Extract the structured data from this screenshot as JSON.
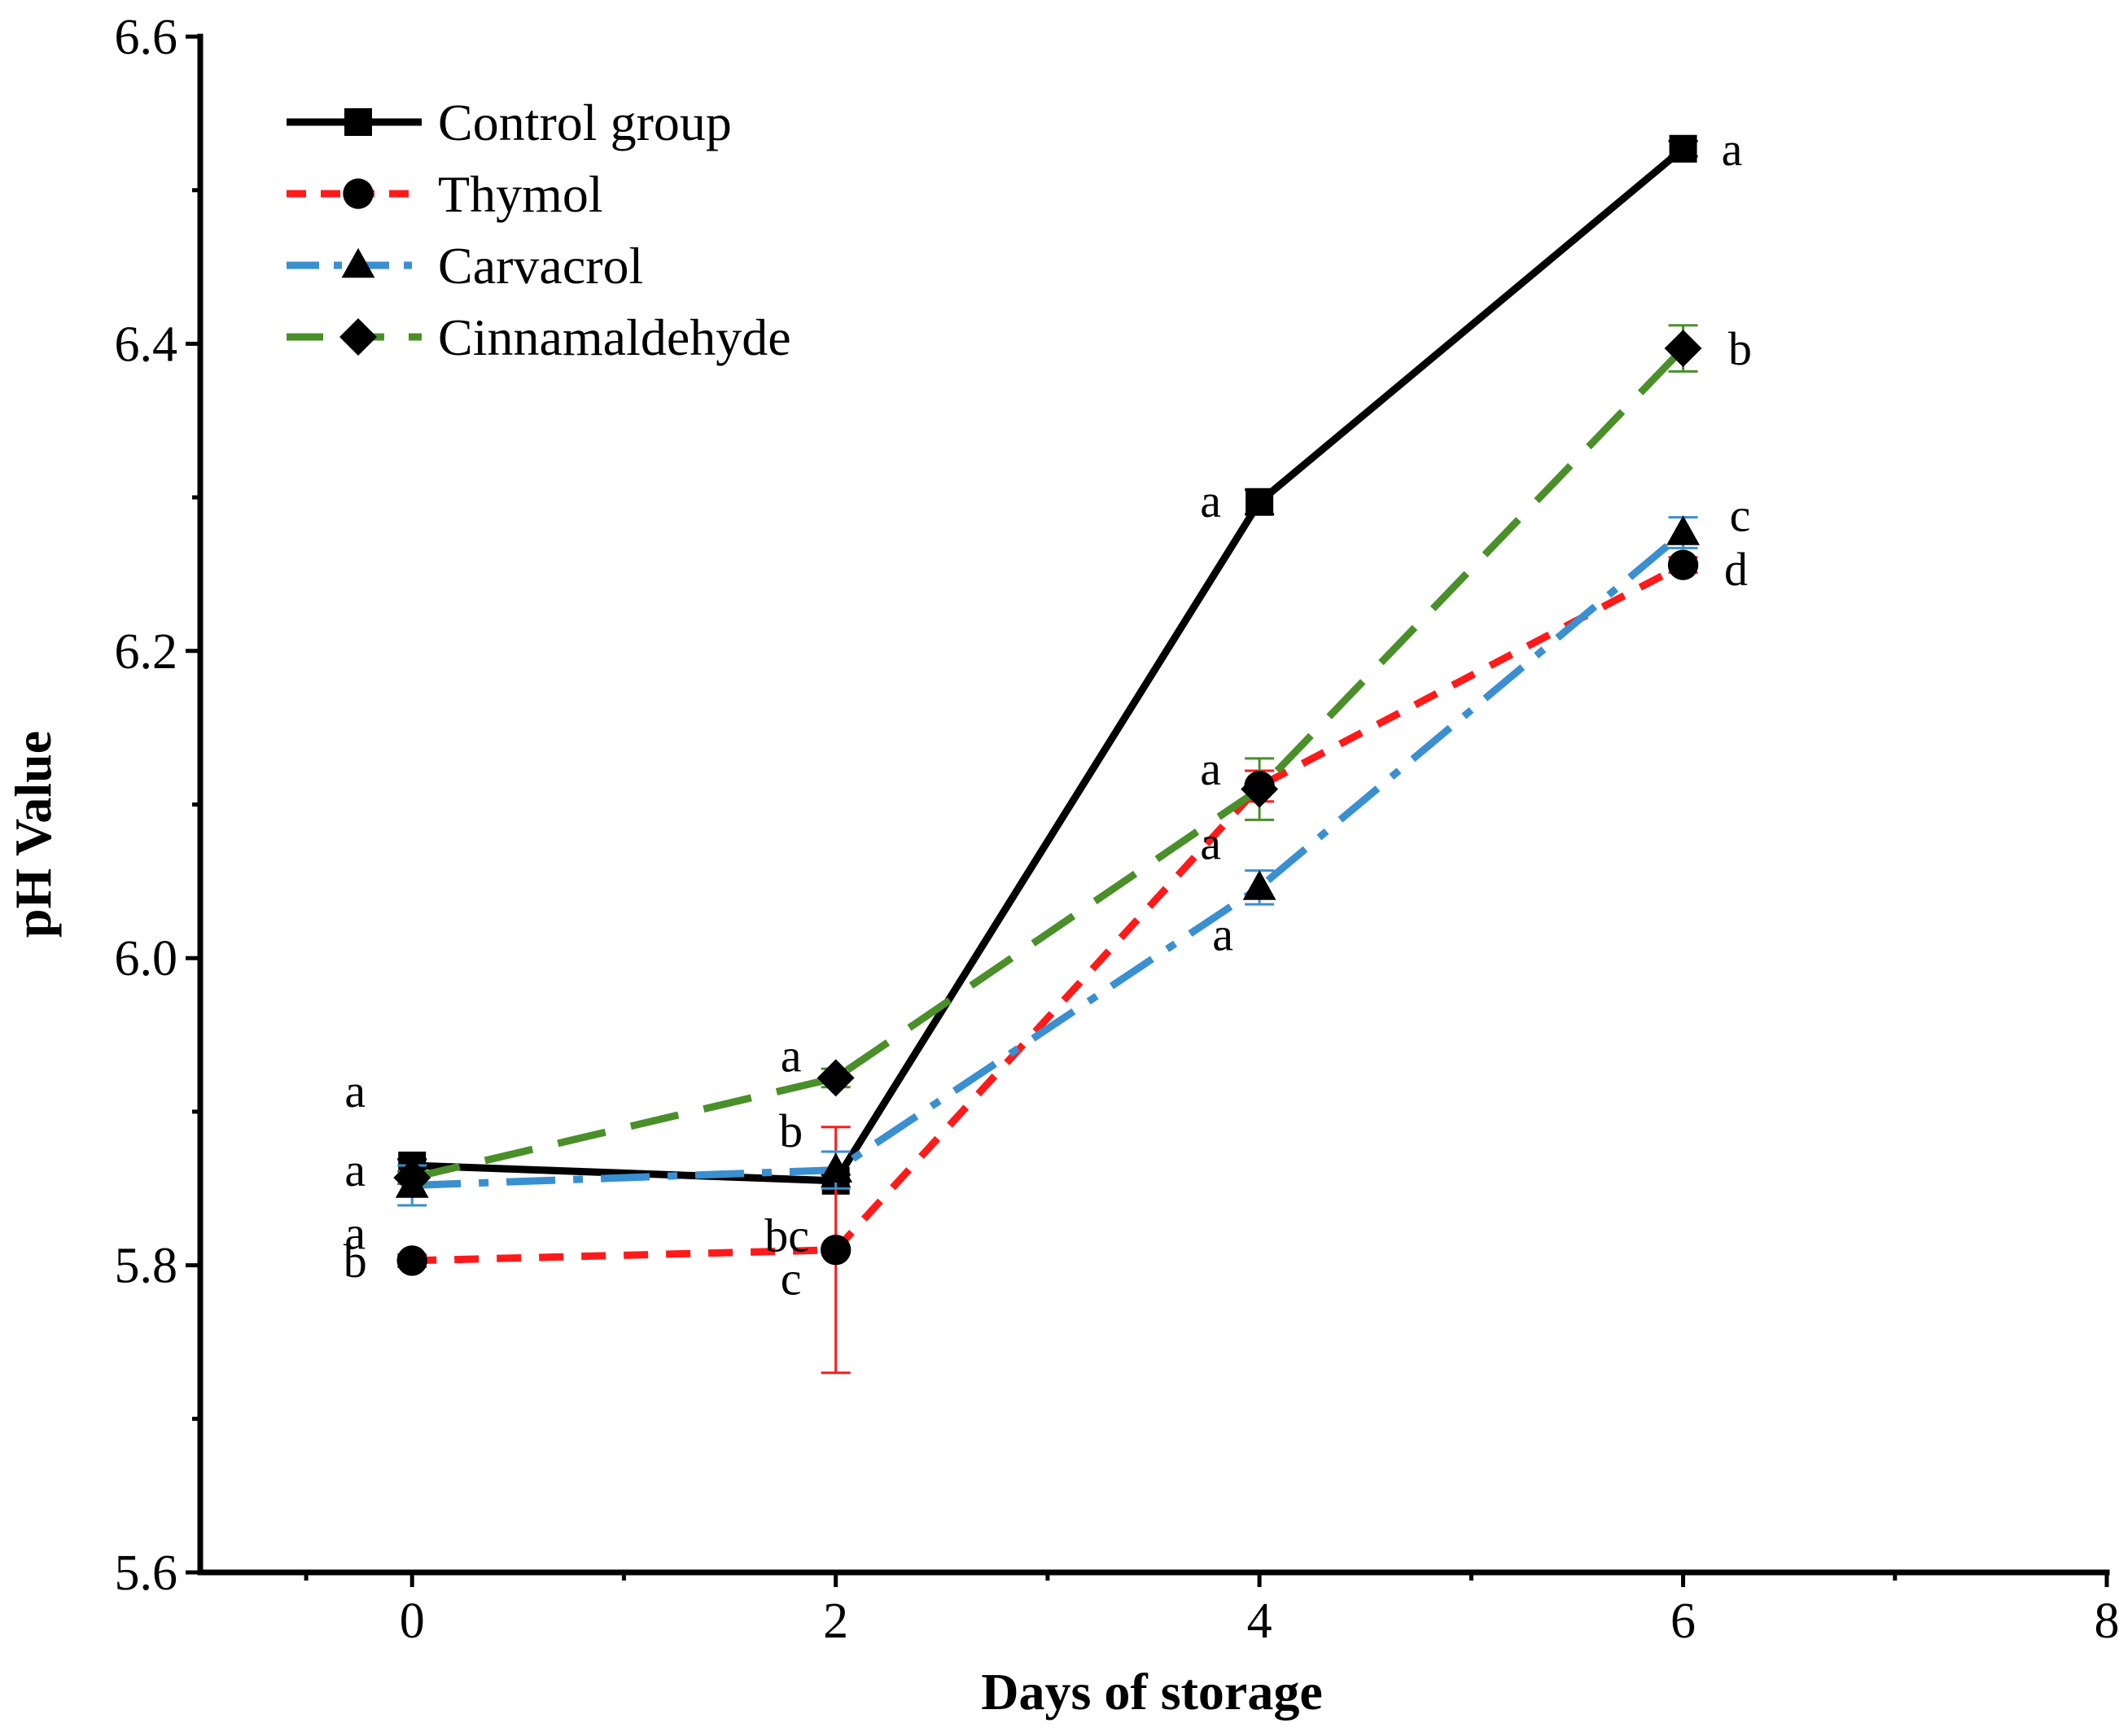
{
  "chart_data": {
    "type": "line",
    "title": "",
    "xlabel": "Days of storage",
    "ylabel": "pH Value",
    "xlim": [
      -1,
      8
    ],
    "ylim": [
      5.6,
      6.6
    ],
    "xticks": [
      0,
      2,
      4,
      6,
      8
    ],
    "xtick_labels": [
      "0",
      "2",
      "4",
      "6",
      "8"
    ],
    "yticks": [
      5.6,
      5.8,
      6.0,
      6.2,
      6.4,
      6.6
    ],
    "ytick_labels": [
      "5.6",
      "5.8",
      "6.0",
      "6.2",
      "6.4",
      "6.6"
    ],
    "grid": false,
    "legend_position": "top-left",
    "series": [
      {
        "name": "Control group",
        "color": "#000000",
        "line_style": "solid",
        "marker": "square",
        "x": [
          0,
          2,
          4,
          6
        ],
        "y": [
          5.865,
          5.855,
          6.297,
          6.527
        ],
        "err": [
          0.004,
          0.004,
          0.008,
          0.005
        ],
        "sig_labels": [
          "a",
          "b",
          "a",
          "a"
        ]
      },
      {
        "name": "Thymol",
        "color": "#ff1a1a",
        "line_style": "dashed",
        "marker": "circle",
        "x": [
          0,
          2,
          4,
          6
        ],
        "y": [
          5.803,
          5.81,
          6.112,
          6.256
        ],
        "err": [
          0.004,
          0.08,
          0.01,
          0.005
        ],
        "sig_labels": [
          "b",
          "c",
          "a",
          "d"
        ]
      },
      {
        "name": "Carvacrol",
        "color": "#3a8fd0",
        "line_style": "dashdot",
        "marker": "triangle",
        "x": [
          0,
          2,
          4,
          6
        ],
        "y": [
          5.852,
          5.862,
          6.046,
          6.277
        ],
        "err": [
          0.013,
          0.012,
          0.011,
          0.01
        ],
        "sig_labels": [
          "a",
          "bc",
          "a",
          "c"
        ]
      },
      {
        "name": "Cinnamaldehyde",
        "color": "#4a8f2a",
        "line_style": "longdash",
        "marker": "diamond",
        "x": [
          0,
          2,
          4,
          6
        ],
        "y": [
          5.857,
          5.922,
          6.11,
          6.397
        ],
        "err": [
          0.004,
          0.006,
          0.02,
          0.015
        ],
        "sig_labels": [
          "a",
          "a",
          "a",
          "b"
        ]
      }
    ]
  }
}
